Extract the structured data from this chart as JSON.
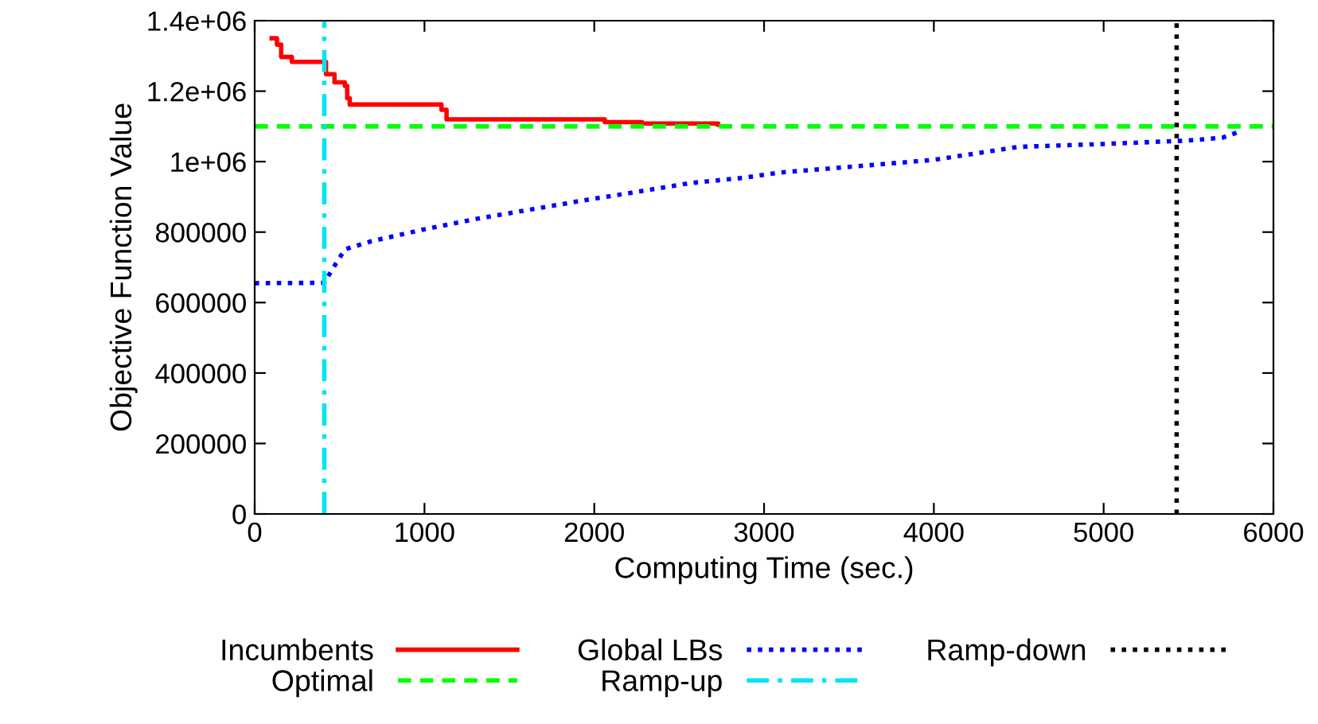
{
  "chart_data": {
    "type": "step",
    "xlabel": "Computing Time (sec.)",
    "ylabel": "Objective Function Value",
    "xlim": [
      0,
      6000
    ],
    "xticks": [
      0,
      1000,
      2000,
      3000,
      4000,
      5000,
      6000
    ],
    "ylim": [
      0,
      1400000
    ],
    "yticks": [
      0,
      200000,
      400000,
      600000,
      800000,
      {
        "value": 1000000,
        "label": "1e+06"
      },
      {
        "value": 1200000,
        "label": "1.2e+06"
      },
      {
        "value": 1400000,
        "label": "1.4e+06"
      }
    ],
    "grid": false,
    "legend": "bottom",
    "series": [
      {
        "name": "Incumbents",
        "color": "#ff0000",
        "line_style": "solid",
        "x": [
          100,
          131,
          156,
          219,
          406,
          420,
          470,
          531,
          545,
          560,
          1062,
          1100,
          1130,
          2062,
          2281,
          2730
        ],
        "values": [
          1350000,
          1332000,
          1297000,
          1283000,
          1283000,
          1248000,
          1225000,
          1215000,
          1180000,
          1162000,
          1162000,
          1147000,
          1120000,
          1112000,
          1108000,
          1105000
        ]
      },
      {
        "name": "Global LBs",
        "type": "line",
        "color": "#0000ff",
        "line_style": "dotted",
        "x": [
          0,
          410,
          453,
          531,
          687,
          1000,
          1312,
          1625,
          1937,
          2250,
          2562,
          2875,
          3094,
          3500,
          4000,
          4500,
          5000,
          5500,
          5700,
          5800
        ],
        "values": [
          655000,
          656000,
          691000,
          751000,
          774000,
          808000,
          838000,
          864000,
          890000,
          914000,
          939000,
          954000,
          969000,
          985000,
          1005000,
          1042000,
          1050000,
          1060000,
          1068000,
          1085000
        ]
      }
    ],
    "ref_lines": [
      {
        "axis": "y",
        "value": 1100000,
        "label": "Optimal",
        "color": "#00ff00",
        "line_style": "dashed"
      },
      {
        "axis": "x",
        "value": 410,
        "label": "Ramp-up",
        "color": "#00e5ee",
        "line_style": "dashdot"
      },
      {
        "axis": "x",
        "value": 5430,
        "label": "Ramp-down",
        "color": "#000000",
        "line_style": "dotted"
      }
    ]
  }
}
